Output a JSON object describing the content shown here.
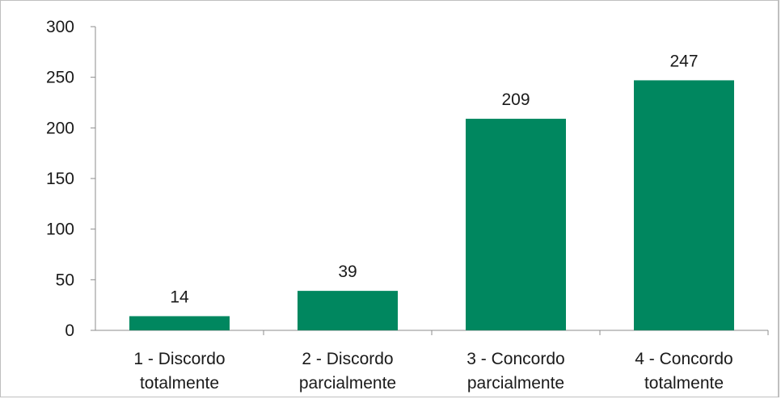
{
  "chart_data": {
    "type": "bar",
    "title": "",
    "xlabel": "",
    "ylabel": "",
    "categories": [
      [
        "1 - Discordo",
        "totalmente"
      ],
      [
        "2 - Discordo",
        "parcialmente"
      ],
      [
        "3 - Concordo",
        "parcialmente"
      ],
      [
        "4 - Concordo",
        "totalmente"
      ]
    ],
    "values": [
      14,
      39,
      209,
      247
    ],
    "data_labels": [
      "14",
      "39",
      "209",
      "247"
    ],
    "ylim": [
      0,
      300
    ],
    "yticks": [
      0,
      50,
      100,
      150,
      200,
      250,
      300
    ],
    "ytick_labels": [
      "0",
      "50",
      "100",
      "150",
      "200",
      "250",
      "300"
    ],
    "bar_color": "#00875F",
    "axis_color": "#8c8c8c",
    "gridlines": false,
    "legend": "none"
  }
}
